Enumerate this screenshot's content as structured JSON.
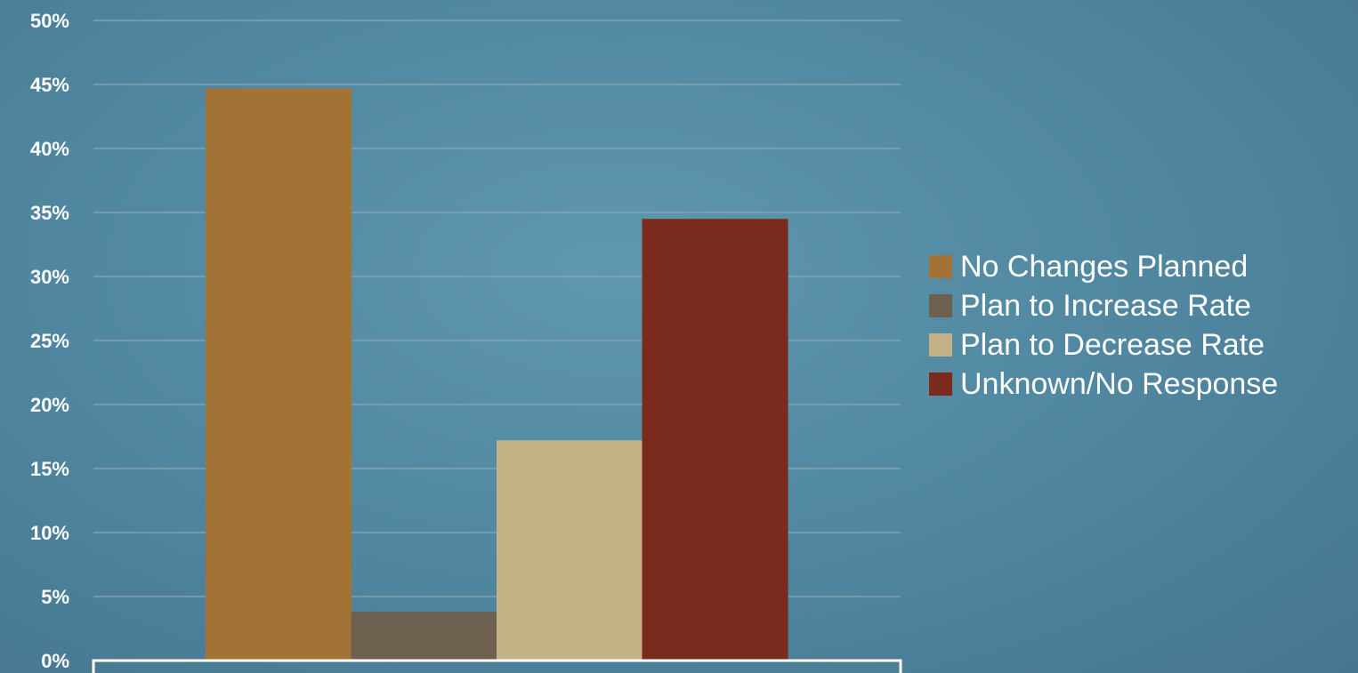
{
  "chart_data": {
    "type": "bar",
    "title": "",
    "xlabel": "",
    "ylabel": "",
    "categories": [
      ""
    ],
    "ylim": [
      0,
      50
    ],
    "yticks": [
      "0%",
      "5%",
      "10%",
      "15%",
      "20%",
      "25%",
      "30%",
      "35%",
      "40%",
      "45%",
      "50%"
    ],
    "grid": true,
    "legend_position": "right",
    "series": [
      {
        "name": "No Changes Planned",
        "values": [
          44.7
        ],
        "color": "#a27334"
      },
      {
        "name": "Plan to Increase Rate",
        "values": [
          3.8
        ],
        "color": "#6e604e"
      },
      {
        "name": "Plan to Decrease Rate",
        "values": [
          17.2
        ],
        "color": "#c4b185"
      },
      {
        "name": "Unknown/No Response",
        "values": [
          34.5
        ],
        "color": "#7a2b1e"
      }
    ]
  }
}
